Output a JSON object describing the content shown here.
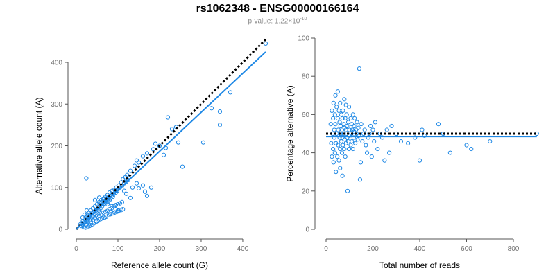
{
  "title": "rs1062348 - ENSG00000166164",
  "subtitle_prefix": "p-value: 1.22×10",
  "subtitle_exponent": "-10",
  "colors": {
    "points": "#1e88e5",
    "fit_line": "#1e88e5",
    "reference_line": "#000000",
    "axis": "#555555"
  },
  "chart_data": [
    {
      "type": "scatter",
      "xlabel": "Reference allele count (G)",
      "ylabel": "Alternative allele count (A)",
      "xlim": [
        0,
        460
      ],
      "ylim": [
        0,
        400
      ],
      "xticks": [
        0,
        100,
        200,
        300,
        400
      ],
      "yticks": [
        0,
        100,
        200,
        300,
        400
      ],
      "reference_line": {
        "style": "dotted",
        "from": [
          0,
          0
        ],
        "to": [
          455,
          455
        ]
      },
      "fit_line": {
        "style": "solid",
        "from": [
          0,
          0
        ],
        "to": [
          455,
          425
        ]
      },
      "points": [
        [
          10,
          12
        ],
        [
          12,
          8
        ],
        [
          14,
          15
        ],
        [
          15,
          10
        ],
        [
          16,
          20
        ],
        [
          18,
          14
        ],
        [
          20,
          25
        ],
        [
          20,
          18
        ],
        [
          22,
          10
        ],
        [
          24,
          30
        ],
        [
          25,
          22
        ],
        [
          26,
          35
        ],
        [
          28,
          18
        ],
        [
          30,
          28
        ],
        [
          30,
          40
        ],
        [
          32,
          22
        ],
        [
          34,
          32
        ],
        [
          35,
          45
        ],
        [
          36,
          26
        ],
        [
          38,
          38
        ],
        [
          40,
          30
        ],
        [
          40,
          50
        ],
        [
          42,
          42
        ],
        [
          44,
          36
        ],
        [
          45,
          55
        ],
        [
          46,
          44
        ],
        [
          48,
          40
        ],
        [
          50,
          60
        ],
        [
          50,
          48
        ],
        [
          52,
          52
        ],
        [
          54,
          45
        ],
        [
          55,
          65
        ],
        [
          56,
          58
        ],
        [
          58,
          50
        ],
        [
          60,
          62
        ],
        [
          60,
          70
        ],
        [
          62,
          55
        ],
        [
          64,
          66
        ],
        [
          65,
          60
        ],
        [
          66,
          74
        ],
        [
          68,
          62
        ],
        [
          70,
          68
        ],
        [
          70,
          78
        ],
        [
          72,
          64
        ],
        [
          74,
          72
        ],
        [
          75,
          82
        ],
        [
          76,
          66
        ],
        [
          78,
          76
        ],
        [
          80,
          70
        ],
        [
          80,
          88
        ],
        [
          82,
          74
        ],
        [
          85,
          80
        ],
        [
          86,
          92
        ],
        [
          88,
          78
        ],
        [
          90,
          85
        ],
        [
          92,
          95
        ],
        [
          95,
          88
        ],
        [
          96,
          100
        ],
        [
          98,
          92
        ],
        [
          100,
          96
        ],
        [
          102,
          105
        ],
        [
          105,
          100
        ],
        [
          108,
          112
        ],
        [
          110,
          104
        ],
        [
          112,
          120
        ],
        [
          115,
          110
        ],
        [
          118,
          125
        ],
        [
          120,
          114
        ],
        [
          122,
          130
        ],
        [
          125,
          118
        ],
        [
          15,
          28
        ],
        [
          20,
          35
        ],
        [
          25,
          45
        ],
        [
          30,
          12
        ],
        [
          35,
          18
        ],
        [
          40,
          22
        ],
        [
          45,
          28
        ],
        [
          50,
          30
        ],
        [
          55,
          32
        ],
        [
          60,
          35
        ],
        [
          65,
          40
        ],
        [
          70,
          42
        ],
        [
          75,
          44
        ],
        [
          80,
          48
        ],
        [
          85,
          50
        ],
        [
          90,
          55
        ],
        [
          95,
          58
        ],
        [
          100,
          60
        ],
        [
          105,
          62
        ],
        [
          110,
          65
        ],
        [
          18,
          5
        ],
        [
          22,
          4
        ],
        [
          28,
          6
        ],
        [
          32,
          8
        ],
        [
          38,
          10
        ],
        [
          42,
          14
        ],
        [
          48,
          18
        ],
        [
          52,
          20
        ],
        [
          58,
          24
        ],
        [
          62,
          26
        ],
        [
          68,
          28
        ],
        [
          72,
          30
        ],
        [
          78,
          34
        ],
        [
          82,
          36
        ],
        [
          88,
          38
        ],
        [
          92,
          40
        ],
        [
          98,
          42
        ],
        [
          102,
          44
        ],
        [
          108,
          46
        ],
        [
          112,
          48
        ],
        [
          24,
          122
        ],
        [
          130,
          140
        ],
        [
          140,
          152
        ],
        [
          145,
          165
        ],
        [
          150,
          160
        ],
        [
          160,
          175
        ],
        [
          170,
          182
        ],
        [
          180,
          100
        ],
        [
          185,
          192
        ],
        [
          190,
          205
        ],
        [
          200,
          200
        ],
        [
          210,
          178
        ],
        [
          215,
          195
        ],
        [
          220,
          268
        ],
        [
          230,
          240
        ],
        [
          240,
          245
        ],
        [
          245,
          208
        ],
        [
          255,
          150
        ],
        [
          305,
          208
        ],
        [
          325,
          290
        ],
        [
          345,
          282
        ],
        [
          345,
          250
        ],
        [
          370,
          328
        ],
        [
          455,
          445
        ],
        [
          135,
          100
        ],
        [
          145,
          110
        ],
        [
          150,
          98
        ],
        [
          160,
          105
        ],
        [
          165,
          90
        ],
        [
          170,
          80
        ],
        [
          130,
          75
        ],
        [
          120,
          85
        ],
        [
          115,
          92
        ],
        [
          100,
          45
        ],
        [
          95,
          48
        ],
        [
          85,
          55
        ],
        [
          75,
          60
        ],
        [
          65,
          72
        ],
        [
          55,
          76
        ],
        [
          45,
          70
        ]
      ]
    },
    {
      "type": "scatter",
      "xlabel": "Total number of reads",
      "ylabel": "Percentage alternative (A)",
      "xlim": [
        0,
        900
      ],
      "ylim": [
        0,
        100
      ],
      "xticks": [
        0,
        200,
        400,
        600,
        800
      ],
      "yticks": [
        0,
        20,
        40,
        60,
        80,
        100
      ],
      "reference_line": {
        "style": "dotted",
        "y": 50
      },
      "fit_line": {
        "style": "solid",
        "y": 48.5
      },
      "points": [
        [
          20,
          55
        ],
        [
          22,
          45
        ],
        [
          25,
          62
        ],
        [
          25,
          38
        ],
        [
          28,
          50
        ],
        [
          30,
          58
        ],
        [
          30,
          42
        ],
        [
          32,
          66
        ],
        [
          32,
          35
        ],
        [
          35,
          52
        ],
        [
          35,
          48
        ],
        [
          38,
          60
        ],
        [
          38,
          40
        ],
        [
          40,
          70
        ],
        [
          40,
          55
        ],
        [
          42,
          45
        ],
        [
          42,
          30
        ],
        [
          45,
          64
        ],
        [
          45,
          50
        ],
        [
          48,
          38
        ],
        [
          50,
          72
        ],
        [
          50,
          58
        ],
        [
          52,
          44
        ],
        [
          52,
          52
        ],
        [
          55,
          62
        ],
        [
          55,
          36
        ],
        [
          58,
          48
        ],
        [
          58,
          56
        ],
        [
          60,
          66
        ],
        [
          60,
          42
        ],
        [
          62,
          54
        ],
        [
          62,
          50
        ],
        [
          65,
          60
        ],
        [
          65,
          46
        ],
        [
          68,
          40
        ],
        [
          68,
          52
        ],
        [
          70,
          58
        ],
        [
          70,
          48
        ],
        [
          72,
          62
        ],
        [
          72,
          44
        ],
        [
          75,
          55
        ],
        [
          75,
          50
        ],
        [
          78,
          68
        ],
        [
          78,
          42
        ],
        [
          80,
          53
        ],
        [
          80,
          47
        ],
        [
          82,
          58
        ],
        [
          82,
          38
        ],
        [
          85,
          52
        ],
        [
          85,
          45
        ],
        [
          88,
          60
        ],
        [
          88,
          50
        ],
        [
          90,
          54
        ],
        [
          90,
          48
        ],
        [
          92,
          20
        ],
        [
          95,
          56
        ],
        [
          95,
          46
        ],
        [
          98,
          64
        ],
        [
          98,
          42
        ],
        [
          100,
          52
        ],
        [
          100,
          49
        ],
        [
          105,
          58
        ],
        [
          105,
          44
        ],
        [
          108,
          50
        ],
        [
          110,
          55
        ],
        [
          110,
          46
        ],
        [
          112,
          52
        ],
        [
          115,
          60
        ],
        [
          115,
          42
        ],
        [
          118,
          48
        ],
        [
          120,
          54
        ],
        [
          120,
          51
        ],
        [
          122,
          58
        ],
        [
          125,
          45
        ],
        [
          128,
          52
        ],
        [
          130,
          50
        ],
        [
          132,
          56
        ],
        [
          135,
          47
        ],
        [
          138,
          53
        ],
        [
          140,
          49
        ],
        [
          142,
          84
        ],
        [
          145,
          26
        ],
        [
          148,
          35
        ],
        [
          150,
          55
        ],
        [
          155,
          46
        ],
        [
          160,
          50
        ],
        [
          165,
          52
        ],
        [
          170,
          44
        ],
        [
          175,
          40
        ],
        [
          180,
          48
        ],
        [
          185,
          50
        ],
        [
          190,
          54
        ],
        [
          195,
          38
        ],
        [
          200,
          52
        ],
        [
          205,
          46
        ],
        [
          210,
          56
        ],
        [
          220,
          42
        ],
        [
          230,
          50
        ],
        [
          240,
          48
        ],
        [
          250,
          36
        ],
        [
          260,
          52
        ],
        [
          270,
          40
        ],
        [
          280,
          54
        ],
        [
          300,
          50
        ],
        [
          320,
          46
        ],
        [
          350,
          45
        ],
        [
          380,
          48
        ],
        [
          400,
          36
        ],
        [
          410,
          52
        ],
        [
          420,
          49
        ],
        [
          480,
          55
        ],
        [
          500,
          50
        ],
        [
          530,
          40
        ],
        [
          600,
          44
        ],
        [
          620,
          42
        ],
        [
          700,
          46
        ],
        [
          900,
          50
        ],
        [
          60,
          32
        ],
        [
          70,
          28
        ],
        [
          85,
          65
        ]
      ]
    }
  ]
}
